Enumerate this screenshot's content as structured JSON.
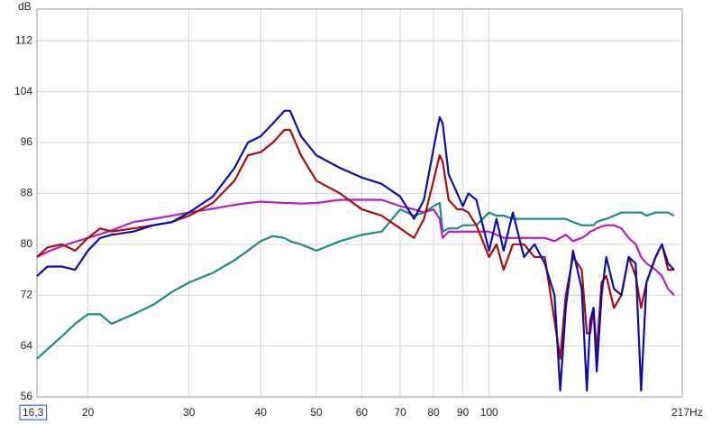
{
  "chart_data": {
    "type": "line",
    "y_label": "dB",
    "log_x": true,
    "grid": true,
    "xlim": [
      16.3,
      217
    ],
    "ylim": [
      56,
      117
    ],
    "xticks": [
      {
        "value": 16.3,
        "label": "16,3"
      },
      20,
      30,
      40,
      50,
      60,
      70,
      80,
      90,
      100,
      {
        "value": 217,
        "label": "217Hz"
      }
    ],
    "yticks": [
      56,
      64,
      72,
      80,
      88,
      96,
      104,
      112
    ],
    "x": [
      16.3,
      17,
      18,
      19,
      20,
      21,
      22,
      24,
      26,
      28,
      30,
      33,
      36,
      38,
      40,
      42,
      44,
      45,
      47,
      50,
      55,
      60,
      65,
      70,
      74,
      77,
      80,
      82,
      83,
      85,
      88,
      90,
      92,
      95,
      100,
      103,
      106,
      110,
      115,
      120,
      125,
      130,
      133,
      136,
      140,
      145,
      148,
      150,
      152,
      154,
      157,
      160,
      165,
      170,
      175,
      180,
      184,
      188,
      195,
      200,
      205,
      210
    ],
    "series": [
      {
        "color": "#1a8a86",
        "values": [
          62,
          63.5,
          65.5,
          67.5,
          69,
          69,
          67.5,
          69,
          70.5,
          72.5,
          74,
          75.5,
          77.5,
          79,
          80.5,
          81.3,
          81,
          80.5,
          80,
          79,
          80.5,
          81.5,
          82,
          85.5,
          84.5,
          85,
          86,
          86.5,
          82,
          82.5,
          82.5,
          83,
          83,
          83,
          85,
          84.5,
          84.5,
          84,
          84,
          84,
          84,
          84,
          84,
          84,
          83.5,
          83,
          83,
          83,
          83,
          83.5,
          83.8,
          84,
          84.5,
          85,
          85,
          85,
          85,
          84.5,
          85,
          85,
          85,
          84.5
        ]
      },
      {
        "color": "#b21fc0",
        "values": [
          78,
          78.8,
          79.7,
          80.4,
          81,
          81.6,
          82.2,
          83.5,
          84,
          84.5,
          85,
          85.6,
          86.2,
          86.5,
          86.7,
          86.6,
          86.5,
          86.5,
          86.4,
          86.5,
          87,
          87,
          87,
          86,
          85.5,
          85,
          85.5,
          84,
          81,
          82,
          82,
          82,
          82,
          82,
          82,
          81.5,
          81,
          81,
          81,
          81,
          81,
          80.5,
          81,
          81.5,
          80.5,
          81,
          81.5,
          82,
          82.2,
          82.5,
          82.8,
          83,
          83,
          82.5,
          81,
          80,
          78,
          77,
          76,
          75,
          73,
          72
        ]
      },
      {
        "color": "#a80c0c",
        "values": [
          78,
          79.5,
          80,
          79,
          81,
          82.5,
          82,
          82.5,
          83,
          83.5,
          84.5,
          86.5,
          90,
          94,
          94.5,
          96,
          98,
          98,
          94,
          90,
          88,
          85.5,
          84.5,
          82.5,
          81,
          84,
          90,
          94,
          93,
          87,
          85.5,
          85.5,
          85,
          83,
          78,
          80,
          76,
          80,
          80,
          78,
          78,
          68,
          62,
          72,
          78,
          76,
          66,
          66,
          70,
          63,
          74,
          75,
          70,
          72,
          78,
          75,
          70,
          74,
          78,
          80,
          76,
          76
        ]
      },
      {
        "color": "#0c0ca8",
        "values": [
          75,
          76.5,
          76.5,
          76,
          79,
          81,
          81.5,
          82,
          83,
          83.5,
          85,
          87.5,
          92,
          96,
          97,
          99,
          101,
          101,
          97,
          94,
          92,
          90.5,
          89.5,
          87.5,
          84,
          87,
          95,
          100,
          99,
          91,
          88,
          86,
          88,
          87,
          79,
          84,
          79,
          85,
          78,
          80,
          77,
          72,
          57,
          70,
          79,
          73,
          57,
          68,
          70,
          60,
          72,
          78,
          73,
          72,
          78,
          77,
          57,
          74,
          78,
          80,
          77,
          76
        ]
      }
    ]
  }
}
